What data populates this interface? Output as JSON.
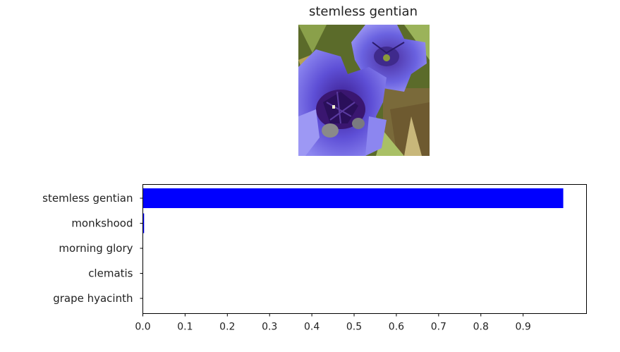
{
  "image_title": "stemless gentian",
  "chart_data": {
    "type": "bar",
    "orientation": "horizontal",
    "categories": [
      "stemless gentian",
      "monkshood",
      "morning glory",
      "clematis",
      "grape hyacinth"
    ],
    "values": [
      0.995,
      0.003,
      0.0007,
      0.0003,
      0.0002
    ],
    "xlim": [
      0,
      1.05
    ],
    "xticks": [
      "0.0",
      "0.1",
      "0.2",
      "0.3",
      "0.4",
      "0.5",
      "0.6",
      "0.7",
      "0.8",
      "0.9"
    ],
    "bar_color": "#0000ff",
    "grid": false,
    "legend": "none"
  },
  "icons": {
    "photo": "stemless-gentian-flower-photo"
  }
}
